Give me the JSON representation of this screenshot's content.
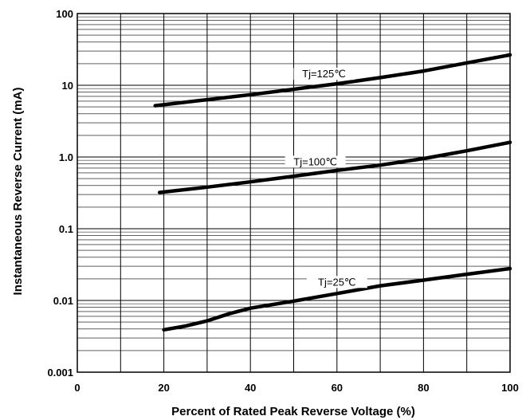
{
  "chart_data": {
    "type": "line",
    "title": "",
    "xlabel": "Percent of Rated Peak Reverse Voltage (%)",
    "ylabel": "Instantaneous Reverse Current (mA)",
    "xlim": [
      0,
      100
    ],
    "ylim": [
      0.001,
      100
    ],
    "yscale": "log",
    "grid": true,
    "x_ticks": [
      "0",
      "20",
      "40",
      "60",
      "80",
      "100"
    ],
    "y_ticks": [
      "0.001",
      "0.01",
      "0.1",
      "1.0",
      "10",
      "100"
    ],
    "series": [
      {
        "name": "Tj=125℃",
        "x": [
          18,
          30,
          40,
          50,
          60,
          70,
          80,
          90,
          100
        ],
        "y": [
          5.2,
          6.3,
          7.4,
          8.8,
          10.5,
          12.8,
          15.8,
          20.5,
          26.5
        ]
      },
      {
        "name": "Tj=100℃",
        "x": [
          19,
          30,
          40,
          50,
          60,
          70,
          80,
          90,
          100
        ],
        "y": [
          0.32,
          0.38,
          0.45,
          0.54,
          0.65,
          0.77,
          0.95,
          1.22,
          1.6
        ]
      },
      {
        "name": "Tj=25℃",
        "x": [
          20,
          25,
          30,
          35,
          40,
          50,
          60,
          70,
          80,
          90,
          100
        ],
        "y": [
          0.0039,
          0.0044,
          0.0052,
          0.0065,
          0.0078,
          0.0098,
          0.0125,
          0.016,
          0.0192,
          0.0232,
          0.0278
        ]
      }
    ]
  }
}
